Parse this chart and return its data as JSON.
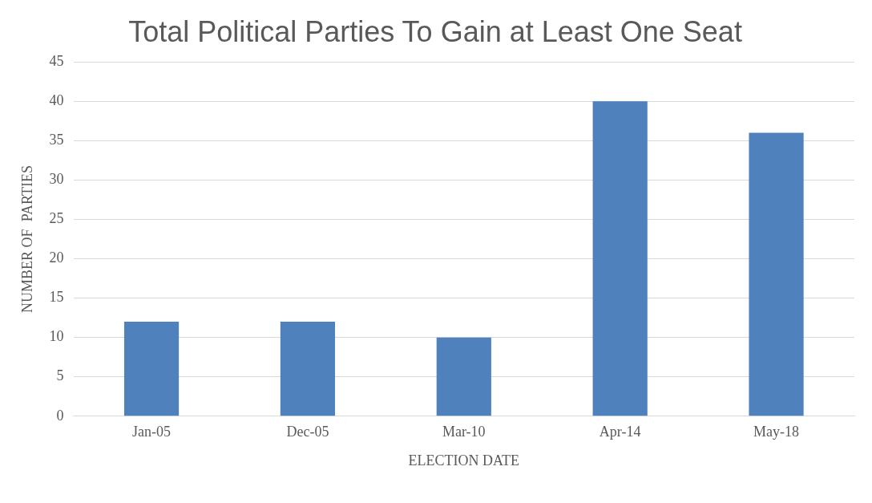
{
  "chart_data": {
    "type": "bar",
    "title": "Total Political Parties To Gain at Least One Seat",
    "xlabel": "ELECTION DATE",
    "ylabel": "NUMBER OF  PARTIES",
    "categories": [
      "Jan-05",
      "Dec-05",
      "Mar-10",
      "Apr-14",
      "May-18"
    ],
    "values": [
      12,
      12,
      10,
      40,
      36
    ],
    "color": "#4f81bd",
    "ylim": [
      0,
      45
    ],
    "yticks": [
      0,
      5,
      10,
      15,
      20,
      25,
      30,
      35,
      40,
      45
    ],
    "grid": "y"
  }
}
